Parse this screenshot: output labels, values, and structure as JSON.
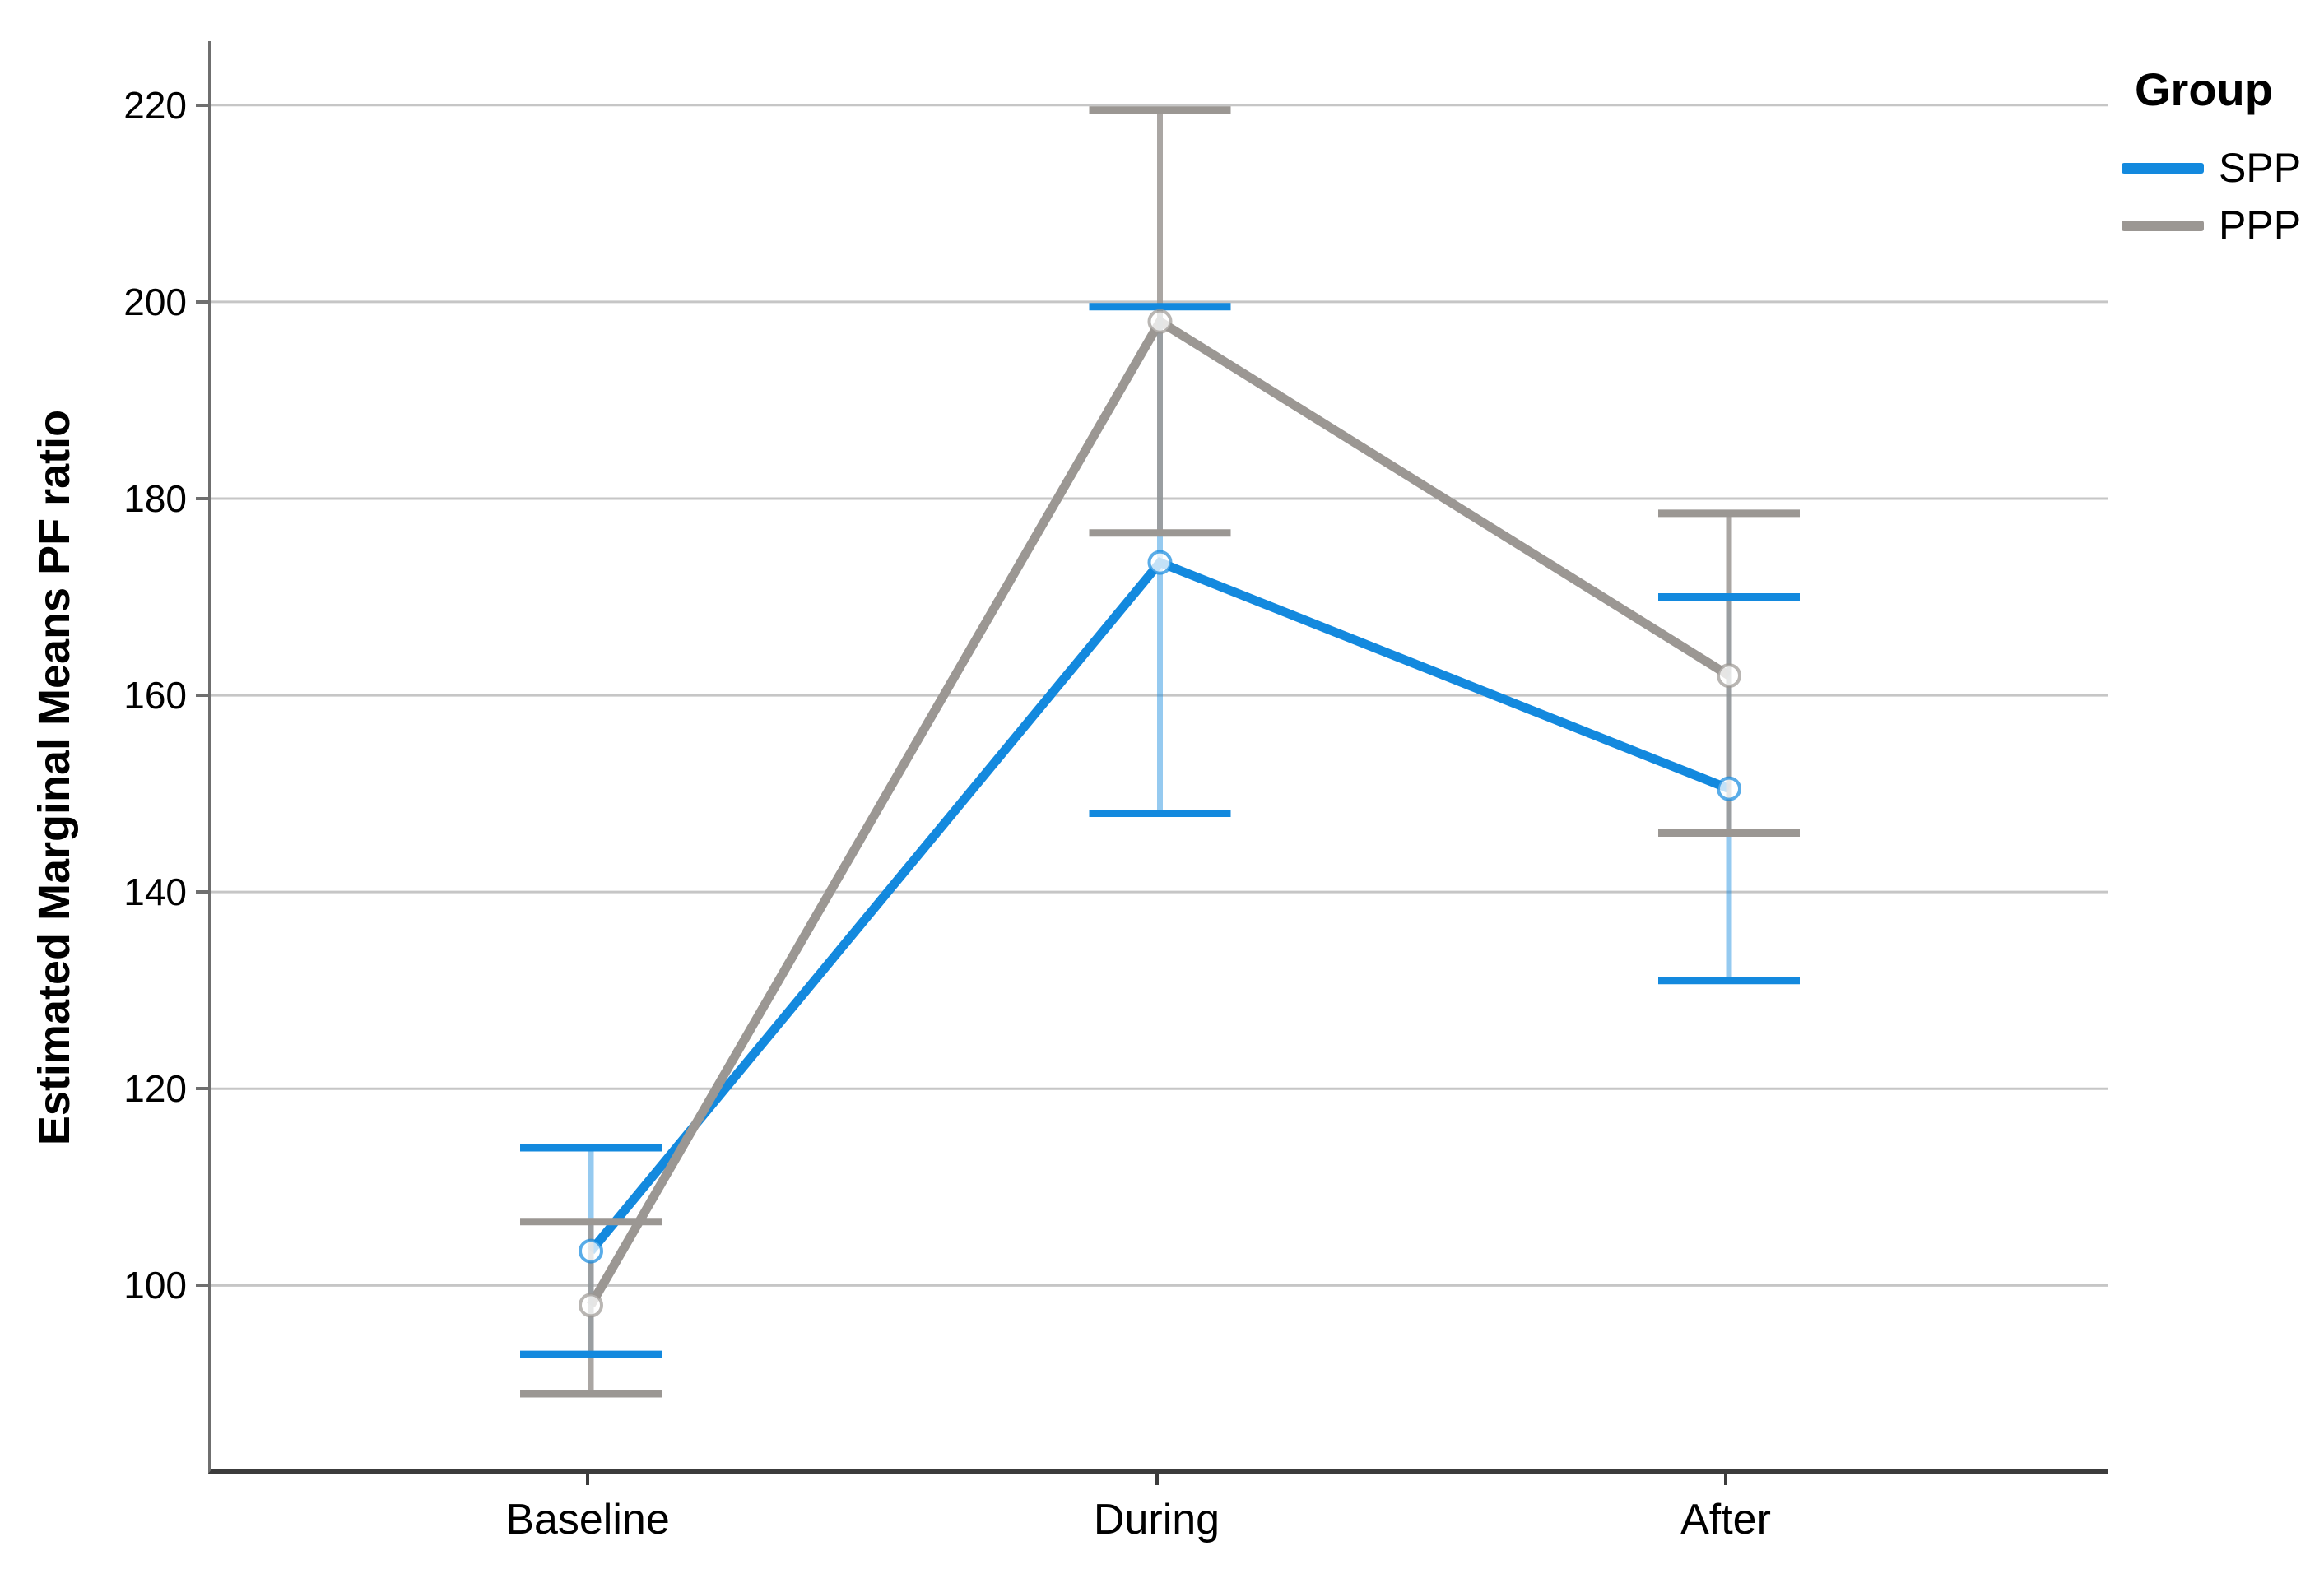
{
  "chart_data": {
    "type": "line",
    "categories": [
      "Baseline",
      "During",
      "After"
    ],
    "ylabel": "Estimated Marginal Means PF ratio",
    "xlabel": "",
    "legend_title": "Group",
    "legend_position": "top-right",
    "grid": "horizontal",
    "yticks": [
      100,
      120,
      140,
      160,
      180,
      200,
      220
    ],
    "ylim": [
      81.3,
      226.5
    ],
    "marker": "open-circle",
    "error_bars_shown": true,
    "series": [
      {
        "name": "SPP",
        "color": "#1389DE",
        "means": [
          103.5,
          173.5,
          150.5
        ],
        "ci_lower": [
          93,
          148,
          131
        ],
        "ci_upper": [
          114,
          199.5,
          170
        ]
      },
      {
        "name": "PPP",
        "color": "#9B9793",
        "means": [
          98,
          198,
          162
        ],
        "ci_lower": [
          89,
          176.5,
          146
        ],
        "ci_upper": [
          106.5,
          219.5,
          178.5
        ]
      }
    ]
  },
  "colors": {
    "background": "#FFFFFF",
    "gridline": "#C6C6C6",
    "y_axis_line": "#6F6F6F",
    "x_axis_line": "#3C3C3C",
    "text": "#000000"
  }
}
